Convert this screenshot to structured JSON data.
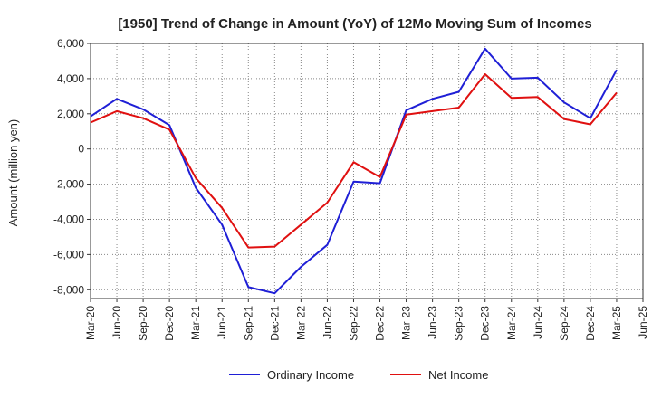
{
  "chart_data": {
    "type": "line",
    "title": "[1950]  Trend of Change in Amount (YoY) of 12Mo Moving Sum of Incomes",
    "ylabel": "Amount (million yen)",
    "xlabel": "",
    "ylim": [
      -8500,
      6000
    ],
    "yticks": [
      6000,
      4000,
      2000,
      0,
      -2000,
      -4000,
      -6000,
      -8000
    ],
    "ytick_labels": [
      "6,000",
      "4,000",
      "2,000",
      "0",
      "-2,000",
      "-4,000",
      "-6,000",
      "-8,000"
    ],
    "x": [
      "Mar-20",
      "Jun-20",
      "Sep-20",
      "Dec-20",
      "Mar-21",
      "Jun-21",
      "Sep-21",
      "Dec-21",
      "Mar-22",
      "Jun-22",
      "Sep-22",
      "Dec-22",
      "Mar-23",
      "Jun-23",
      "Sep-23",
      "Dec-23",
      "Mar-24",
      "Jun-24",
      "Sep-24",
      "Dec-24",
      "Mar-25",
      "Jun-25"
    ],
    "grid": true,
    "legend": "bottom",
    "series": [
      {
        "name": "Ordinary Income",
        "color": "#1f1fd6",
        "values": [
          1850,
          2850,
          2250,
          1350,
          -2200,
          -4300,
          -7850,
          -8200,
          -6700,
          -5450,
          -1850,
          -1950,
          2200,
          2850,
          3250,
          5700,
          4000,
          4050,
          2650,
          1750,
          4500,
          null
        ]
      },
      {
        "name": "Net Income",
        "color": "#e01010",
        "values": [
          1500,
          2150,
          1750,
          1100,
          -1650,
          -3350,
          -5600,
          -5550,
          -4300,
          -3050,
          -750,
          -1600,
          1950,
          2150,
          2350,
          4250,
          2900,
          2950,
          1700,
          1400,
          3200,
          null
        ]
      }
    ]
  }
}
